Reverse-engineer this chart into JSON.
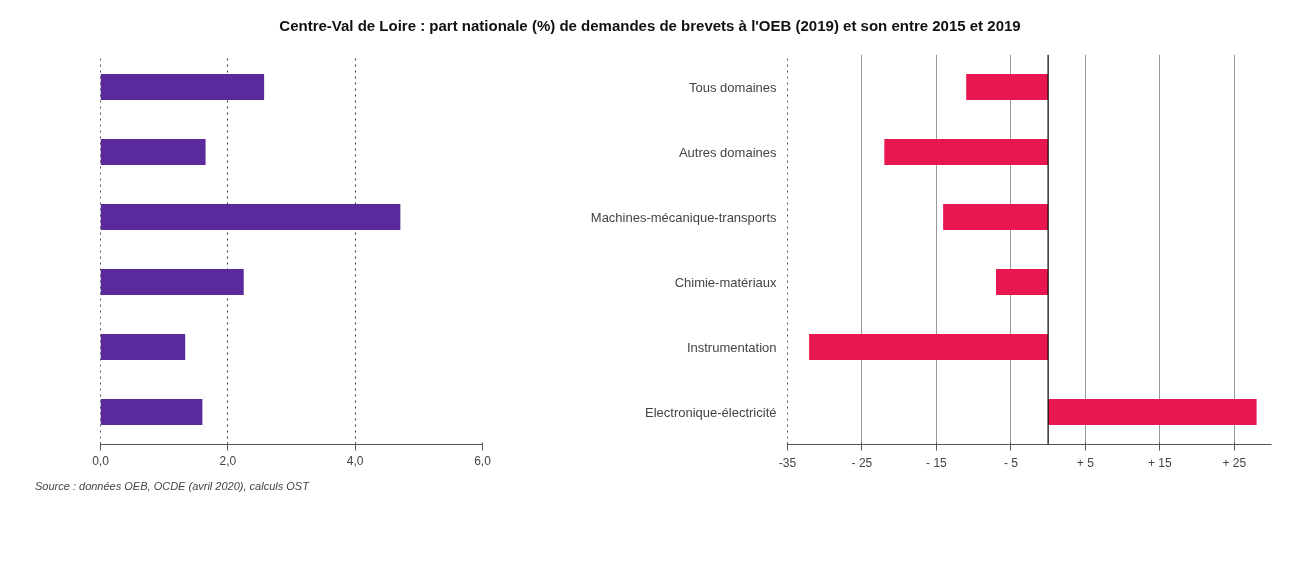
{
  "chart_data": [
    {
      "type": "bar",
      "orientation": "horizontal",
      "title": "Centre-Val de Loire : part nationale (%) de demandes de brevets à l'OEB (2019) et son entre 2015 et 2019",
      "categories": [
        null,
        null,
        null,
        null,
        null,
        null
      ],
      "values": [
        2.57,
        1.65,
        4.71,
        2.25,
        1.33,
        1.6
      ],
      "color": "#5a2a9c",
      "xlim": [
        0,
        6
      ],
      "xticks": [
        {
          "value": 0,
          "label": "0,0"
        },
        {
          "value": 2,
          "label": "2,0"
        },
        {
          "value": 4,
          "label": "4,0"
        },
        {
          "value": 6,
          "label": "6,0"
        }
      ],
      "grid": "x",
      "tick_labels": "x",
      "annotations": [
        "Source : données OEB, OCDE (avril 2020), calculs OST"
      ]
    },
    {
      "type": "bar",
      "orientation": "horizontal",
      "categories": [
        "Tous domaines",
        "Autres domaines",
        "Machines-mécanique-transports",
        "Chimie-matériaux",
        "Instrumentation",
        "Electronique-électricité"
      ],
      "values": [
        -11.0,
        -22.0,
        -14.1,
        -7.0,
        -32.1,
        28.0
      ],
      "color": "#e8174f",
      "xlim": [
        -35,
        30
      ],
      "xticks": [
        -35,
        {
          "value": -25,
          "label": "- 25"
        },
        {
          "value": -15,
          "label": "- 15"
        },
        {
          "value": -5,
          "label": "- 5"
        },
        {
          "value": 5,
          "label": "+ 5"
        },
        {
          "value": 15,
          "label": "+ 15"
        },
        {
          "value": 25,
          "label": "+ 25"
        }
      ],
      "grid": "x",
      "ref_lines": [
        {
          "axis": "x",
          "value": 0,
          "color": "#000000"
        }
      ]
    }
  ]
}
